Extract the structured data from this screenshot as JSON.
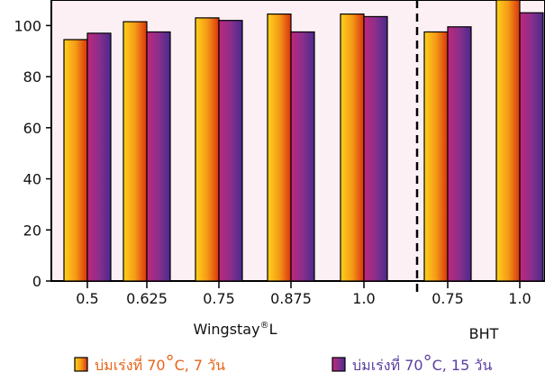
{
  "chart_data": {
    "type": "bar",
    "title": "",
    "xlabel": "",
    "ylabel": "",
    "ylim": [
      0,
      110
    ],
    "yticks": [
      0,
      20,
      40,
      60,
      80,
      100
    ],
    "categories": [
      "0.5",
      "0.625",
      "0.75",
      "0.875",
      "1.0",
      "0.75",
      "1.0"
    ],
    "groups": [
      {
        "label": "Wingstay",
        "label_sup": "®",
        "label_suffix": "L",
        "categories": [
          "0.5",
          "0.625",
          "0.75",
          "0.875",
          "1.0"
        ]
      },
      {
        "label": "BHT",
        "label_sup": "",
        "label_suffix": "",
        "categories": [
          "0.75",
          "1.0"
        ]
      }
    ],
    "series": [
      {
        "name": "บ่มเร่งที่ 70°C, 7 วัน",
        "color": "#f4a020",
        "values": [
          94.5,
          101.5,
          103,
          104.5,
          104.5,
          97.5,
          110
        ]
      },
      {
        "name": "บ่มเร่งที่ 70°C, 15 วัน",
        "color": "#7a2f8a",
        "values": [
          97,
          97.5,
          102,
          97.5,
          103.5,
          99.5,
          105
        ]
      }
    ],
    "legend": {
      "position": "bottom",
      "items": [
        {
          "text": "บ่มเร่งที่ 70",
          "deg": "°",
          "rest": "C, 7 วัน",
          "text_color": "#e8651a"
        },
        {
          "text": "บ่มเร่งที่ 70",
          "deg": "°",
          "rest": "C, 15 วัน",
          "text_color": "#5b3fa0"
        }
      ]
    },
    "plot_background": "#fdf0f4",
    "separator": "dashed line between Wingstay L and BHT groups"
  }
}
